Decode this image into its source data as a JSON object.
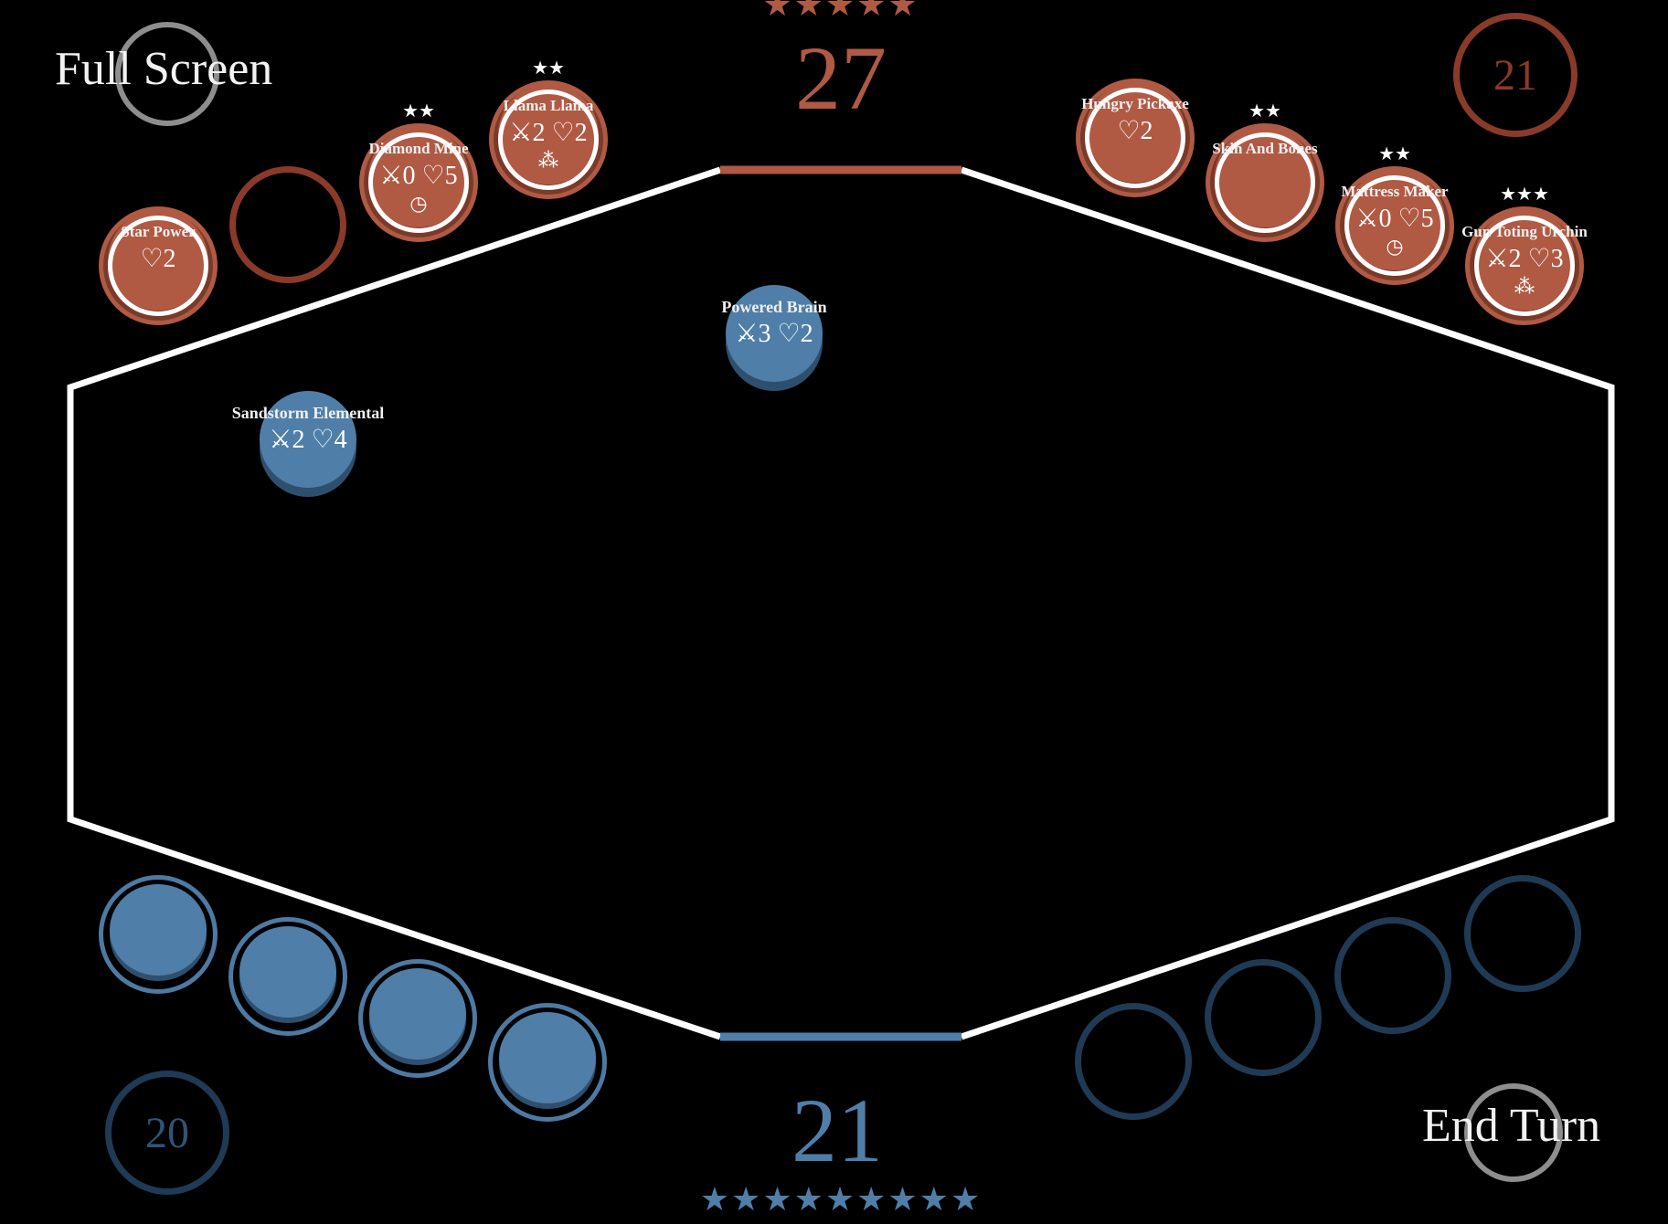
{
  "colors": {
    "enemy": "#b05a44",
    "enemy_dark": "#7a3a2a",
    "enemy_ring": "#8a3a28",
    "player": "#4f7fa8",
    "player_dark": "#2e506e",
    "player_ring": "#1f3a55",
    "board_line": "#ffffff",
    "button_ring": "#8e8e8e"
  },
  "controls": {
    "full_screen_label": "Full Screen",
    "end_turn_label": "End Turn"
  },
  "enemy": {
    "score": "27",
    "stars": "★★★★★",
    "deck_count": "21"
  },
  "player": {
    "score": "21",
    "stars": "★★★★★★★★★",
    "deck_count": "20"
  },
  "enemy_minions": [
    {
      "name": "Star Power",
      "stats": "♡2",
      "ability": "",
      "stars": "",
      "empty": false
    },
    {
      "name": "",
      "stats": "",
      "ability": "",
      "stars": "",
      "empty": true
    },
    {
      "name": "Diamond Mine",
      "stats": "⚔0 ♡5",
      "ability": "◷",
      "stars": "★★",
      "empty": false
    },
    {
      "name": "Llama Llama",
      "stats": "⚔2 ♡2",
      "ability": "⁂",
      "stars": "★★",
      "empty": false
    },
    {
      "name": "Hungry Pickaxe",
      "stats": "♡2",
      "ability": "",
      "stars": "",
      "empty": false
    },
    {
      "name": "Skin And Bones",
      "stats": "",
      "ability": "",
      "stars": "★★",
      "empty": false
    },
    {
      "name": "Mattress Maker",
      "stats": "⚔0 ♡5",
      "ability": "◷",
      "stars": "★★",
      "empty": false
    },
    {
      "name": "Gun Toting Urchin",
      "stats": "⚔2 ♡3",
      "ability": "⁂",
      "stars": "★★★",
      "empty": false
    }
  ],
  "board_minions": [
    {
      "name": "Powered Brain",
      "stats": "⚔3 ♡2"
    },
    {
      "name": "Sandstorm Elemental",
      "stats": "⚔2 ♡4"
    }
  ],
  "player_hand": [
    {
      "filled": true
    },
    {
      "filled": true
    },
    {
      "filled": true
    },
    {
      "filled": true
    },
    {
      "filled": false
    },
    {
      "filled": false
    },
    {
      "filled": false
    },
    {
      "filled": false
    }
  ]
}
